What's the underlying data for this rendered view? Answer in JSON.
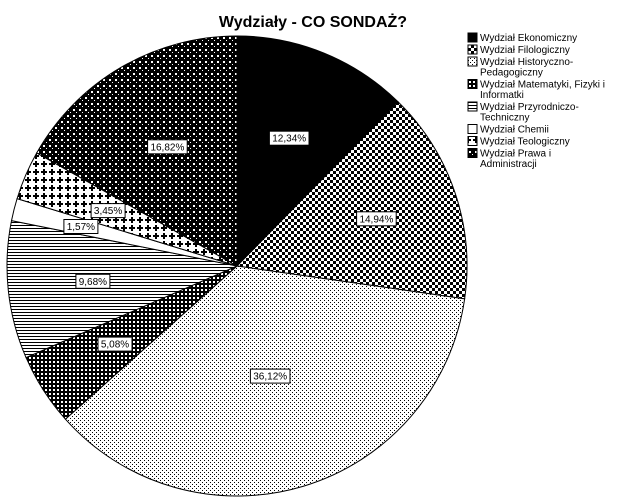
{
  "chart_data": {
    "type": "pie",
    "title": "Wydziały - CO SONDAŻ?",
    "categories": [
      "Wydział Ekonomiczny",
      "Wydział Filologiczny",
      "Wydział Historyczno-Pedagogiczny",
      "Wydział Matematyki, Fizyki i Informatki",
      "Wydział Przyrodniczo-Techniczny",
      "Wydział Chemii",
      "Wydział Teologiczny",
      "Wydział Prawa i Administracji"
    ],
    "legend_lines": [
      [
        "Wydział Ekonomiczny"
      ],
      [
        "Wydział Filologiczny"
      ],
      [
        "Wydział Historyczno-",
        "Pedagogiczny"
      ],
      [
        "Wydział Matematyki, Fizyki i",
        "Informatki"
      ],
      [
        "Wydział Przyrodniczo-",
        "Techniczny"
      ],
      [
        "Wydział Chemii"
      ],
      [
        "Wydział Teologiczny"
      ],
      [
        "Wydział Prawa i",
        "Administracji"
      ]
    ],
    "values": [
      12.34,
      14.94,
      36.12,
      5.08,
      9.68,
      1.57,
      3.45,
      16.82
    ],
    "labels": [
      "12,34%",
      "14,94%",
      "36,12%",
      "5,08%",
      "9,68%",
      "1,57%",
      "3,45%",
      "16,82%"
    ],
    "patterns": [
      "solid",
      "checker",
      "dots",
      "grid",
      "hstripes",
      "blank",
      "cross",
      "squares"
    ],
    "start": "top",
    "direction": "clockwise",
    "legend_position": "right"
  }
}
